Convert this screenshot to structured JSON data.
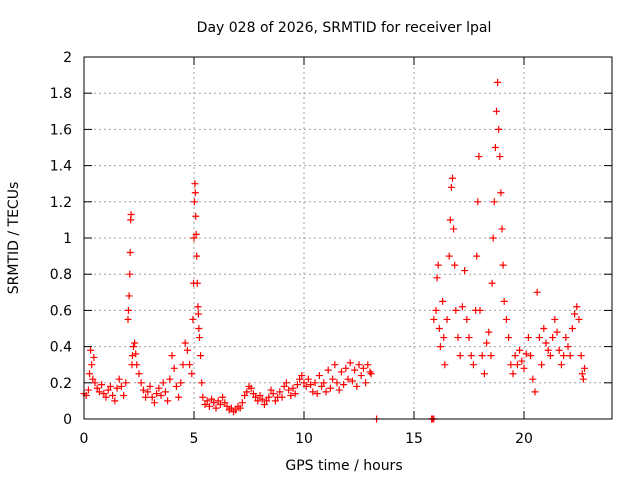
{
  "chart_data": {
    "type": "scatter",
    "title": "Day 028 of 2026, SRMTID for receiver lpal",
    "xlabel": "GPS time / hours",
    "ylabel": "SRMTID / TECUs",
    "xlim": [
      0,
      24
    ],
    "ylim": [
      0,
      2
    ],
    "x_ticks": [
      0,
      5,
      10,
      15,
      20
    ],
    "x_tick_labels": [
      "0",
      "5",
      "10",
      "15",
      "20"
    ],
    "y_ticks": [
      0,
      0.2,
      0.4,
      0.6,
      0.8,
      1,
      1.2,
      1.4,
      1.6,
      1.8,
      2
    ],
    "y_tick_labels": [
      "0",
      "0.2",
      "0.4",
      "0.6",
      "0.8",
      "1",
      "1.2",
      "1.4",
      "1.6",
      "1.8",
      "2"
    ],
    "grid": true,
    "marker": "+",
    "color": "#ff0000",
    "series": [
      {
        "name": "SRMTID",
        "points": [
          [
            0.0,
            0.14
          ],
          [
            0.1,
            0.13
          ],
          [
            0.2,
            0.16
          ],
          [
            0.25,
            0.25
          ],
          [
            0.3,
            0.38
          ],
          [
            0.35,
            0.3
          ],
          [
            0.4,
            0.22
          ],
          [
            0.45,
            0.34
          ],
          [
            0.5,
            0.2
          ],
          [
            0.6,
            0.17
          ],
          [
            0.7,
            0.15
          ],
          [
            0.8,
            0.19
          ],
          [
            0.9,
            0.14
          ],
          [
            1.0,
            0.12
          ],
          [
            1.1,
            0.16
          ],
          [
            1.2,
            0.18
          ],
          [
            1.3,
            0.13
          ],
          [
            1.4,
            0.1
          ],
          [
            1.5,
            0.17
          ],
          [
            1.6,
            0.22
          ],
          [
            1.7,
            0.18
          ],
          [
            1.8,
            0.13
          ],
          [
            1.9,
            0.2
          ],
          [
            2.0,
            0.55
          ],
          [
            2.02,
            0.6
          ],
          [
            2.05,
            0.68
          ],
          [
            2.08,
            0.8
          ],
          [
            2.1,
            0.92
          ],
          [
            2.12,
            1.1
          ],
          [
            2.14,
            1.13
          ],
          [
            2.18,
            0.3
          ],
          [
            2.2,
            0.35
          ],
          [
            2.25,
            0.4
          ],
          [
            2.3,
            0.42
          ],
          [
            2.35,
            0.36
          ],
          [
            2.4,
            0.3
          ],
          [
            2.5,
            0.25
          ],
          [
            2.6,
            0.2
          ],
          [
            2.7,
            0.16
          ],
          [
            2.8,
            0.12
          ],
          [
            2.9,
            0.15
          ],
          [
            3.0,
            0.18
          ],
          [
            3.1,
            0.12
          ],
          [
            3.2,
            0.09
          ],
          [
            3.3,
            0.14
          ],
          [
            3.4,
            0.17
          ],
          [
            3.5,
            0.13
          ],
          [
            3.6,
            0.2
          ],
          [
            3.7,
            0.15
          ],
          [
            3.8,
            0.1
          ],
          [
            3.9,
            0.22
          ],
          [
            4.0,
            0.35
          ],
          [
            4.1,
            0.28
          ],
          [
            4.2,
            0.18
          ],
          [
            4.3,
            0.12
          ],
          [
            4.4,
            0.2
          ],
          [
            4.5,
            0.3
          ],
          [
            4.6,
            0.42
          ],
          [
            4.7,
            0.38
          ],
          [
            4.8,
            0.3
          ],
          [
            4.9,
            0.25
          ],
          [
            4.95,
            0.55
          ],
          [
            4.98,
            0.75
          ],
          [
            5.0,
            1.0
          ],
          [
            5.02,
            1.2
          ],
          [
            5.04,
            1.3
          ],
          [
            5.06,
            1.25
          ],
          [
            5.08,
            1.12
          ],
          [
            5.1,
            1.02
          ],
          [
            5.12,
            0.9
          ],
          [
            5.15,
            0.75
          ],
          [
            5.18,
            0.62
          ],
          [
            5.2,
            0.58
          ],
          [
            5.22,
            0.5
          ],
          [
            5.25,
            0.45
          ],
          [
            5.3,
            0.35
          ],
          [
            5.35,
            0.2
          ],
          [
            5.4,
            0.12
          ],
          [
            5.5,
            0.08
          ],
          [
            5.6,
            0.1
          ],
          [
            5.7,
            0.07
          ],
          [
            5.8,
            0.11
          ],
          [
            5.9,
            0.09
          ],
          [
            6.0,
            0.06
          ],
          [
            6.1,
            0.1
          ],
          [
            6.2,
            0.08
          ],
          [
            6.3,
            0.12
          ],
          [
            6.4,
            0.09
          ],
          [
            6.5,
            0.07
          ],
          [
            6.6,
            0.05
          ],
          [
            6.7,
            0.06
          ],
          [
            6.8,
            0.04
          ],
          [
            6.9,
            0.05
          ],
          [
            7.0,
            0.07
          ],
          [
            7.1,
            0.06
          ],
          [
            7.2,
            0.09
          ],
          [
            7.3,
            0.13
          ],
          [
            7.4,
            0.15
          ],
          [
            7.5,
            0.18
          ],
          [
            7.6,
            0.17
          ],
          [
            7.7,
            0.14
          ],
          [
            7.8,
            0.12
          ],
          [
            7.9,
            0.1
          ],
          [
            8.0,
            0.13
          ],
          [
            8.1,
            0.11
          ],
          [
            8.2,
            0.08
          ],
          [
            8.3,
            0.1
          ],
          [
            8.4,
            0.12
          ],
          [
            8.5,
            0.16
          ],
          [
            8.6,
            0.14
          ],
          [
            8.7,
            0.1
          ],
          [
            8.8,
            0.12
          ],
          [
            8.9,
            0.15
          ],
          [
            9.0,
            0.12
          ],
          [
            9.1,
            0.18
          ],
          [
            9.2,
            0.2
          ],
          [
            9.3,
            0.16
          ],
          [
            9.4,
            0.13
          ],
          [
            9.5,
            0.17
          ],
          [
            9.6,
            0.14
          ],
          [
            9.7,
            0.19
          ],
          [
            9.8,
            0.22
          ],
          [
            9.9,
            0.24
          ],
          [
            10.0,
            0.2
          ],
          [
            10.1,
            0.18
          ],
          [
            10.2,
            0.22
          ],
          [
            10.3,
            0.19
          ],
          [
            10.4,
            0.15
          ],
          [
            10.5,
            0.2
          ],
          [
            10.6,
            0.14
          ],
          [
            10.7,
            0.24
          ],
          [
            10.8,
            0.18
          ],
          [
            10.9,
            0.2
          ],
          [
            11.0,
            0.15
          ],
          [
            11.1,
            0.27
          ],
          [
            11.2,
            0.17
          ],
          [
            11.3,
            0.22
          ],
          [
            11.4,
            0.3
          ],
          [
            11.5,
            0.2
          ],
          [
            11.6,
            0.16
          ],
          [
            11.7,
            0.26
          ],
          [
            11.8,
            0.19
          ],
          [
            11.9,
            0.28
          ],
          [
            12.0,
            0.22
          ],
          [
            12.1,
            0.31
          ],
          [
            12.2,
            0.21
          ],
          [
            12.3,
            0.27
          ],
          [
            12.4,
            0.18
          ],
          [
            12.5,
            0.3
          ],
          [
            12.6,
            0.24
          ],
          [
            12.7,
            0.28
          ],
          [
            12.8,
            0.2
          ],
          [
            12.9,
            0.3
          ],
          [
            13.0,
            0.26
          ],
          [
            13.05,
            0.25
          ],
          [
            13.3,
            0.0
          ],
          [
            15.8,
            0.0
          ],
          [
            15.85,
            0.0
          ],
          [
            15.9,
            0.0
          ],
          [
            15.9,
            0.55
          ],
          [
            16.0,
            0.6
          ],
          [
            16.05,
            0.78
          ],
          [
            16.1,
            0.85
          ],
          [
            16.15,
            0.5
          ],
          [
            16.2,
            0.4
          ],
          [
            16.3,
            0.65
          ],
          [
            16.35,
            0.45
          ],
          [
            16.4,
            0.3
          ],
          [
            16.5,
            0.55
          ],
          [
            16.6,
            0.9
          ],
          [
            16.65,
            1.1
          ],
          [
            16.7,
            1.28
          ],
          [
            16.75,
            1.33
          ],
          [
            16.8,
            1.05
          ],
          [
            16.85,
            0.85
          ],
          [
            16.9,
            0.6
          ],
          [
            17.0,
            0.45
          ],
          [
            17.1,
            0.35
          ],
          [
            17.2,
            0.62
          ],
          [
            17.3,
            0.82
          ],
          [
            17.4,
            0.55
          ],
          [
            17.5,
            0.45
          ],
          [
            17.6,
            0.35
          ],
          [
            17.7,
            0.3
          ],
          [
            17.8,
            0.6
          ],
          [
            17.85,
            0.9
          ],
          [
            17.9,
            1.2
          ],
          [
            17.95,
            1.45
          ],
          [
            18.0,
            0.6
          ],
          [
            18.1,
            0.35
          ],
          [
            18.2,
            0.25
          ],
          [
            18.3,
            0.42
          ],
          [
            18.4,
            0.48
          ],
          [
            18.5,
            0.35
          ],
          [
            18.55,
            0.75
          ],
          [
            18.6,
            1.0
          ],
          [
            18.65,
            1.2
          ],
          [
            18.7,
            1.5
          ],
          [
            18.75,
            1.7
          ],
          [
            18.8,
            1.86
          ],
          [
            18.85,
            1.6
          ],
          [
            18.9,
            1.45
          ],
          [
            18.95,
            1.25
          ],
          [
            19.0,
            1.05
          ],
          [
            19.05,
            0.85
          ],
          [
            19.1,
            0.65
          ],
          [
            19.2,
            0.55
          ],
          [
            19.3,
            0.45
          ],
          [
            19.4,
            0.3
          ],
          [
            19.5,
            0.25
          ],
          [
            19.6,
            0.35
          ],
          [
            19.7,
            0.3
          ],
          [
            19.8,
            0.38
          ],
          [
            19.9,
            0.32
          ],
          [
            20.0,
            0.28
          ],
          [
            20.1,
            0.36
          ],
          [
            20.2,
            0.45
          ],
          [
            20.3,
            0.35
          ],
          [
            20.4,
            0.22
          ],
          [
            20.5,
            0.15
          ],
          [
            20.6,
            0.7
          ],
          [
            20.7,
            0.45
          ],
          [
            20.8,
            0.3
          ],
          [
            20.9,
            0.5
          ],
          [
            21.0,
            0.42
          ],
          [
            21.1,
            0.38
          ],
          [
            21.2,
            0.35
          ],
          [
            21.3,
            0.45
          ],
          [
            21.4,
            0.55
          ],
          [
            21.5,
            0.48
          ],
          [
            21.6,
            0.38
          ],
          [
            21.7,
            0.3
          ],
          [
            21.8,
            0.35
          ],
          [
            21.9,
            0.45
          ],
          [
            22.0,
            0.4
          ],
          [
            22.1,
            0.35
          ],
          [
            22.2,
            0.5
          ],
          [
            22.3,
            0.58
          ],
          [
            22.4,
            0.62
          ],
          [
            22.5,
            0.55
          ],
          [
            22.6,
            0.35
          ],
          [
            22.65,
            0.25
          ],
          [
            22.7,
            0.22
          ],
          [
            22.75,
            0.28
          ]
        ]
      }
    ]
  }
}
